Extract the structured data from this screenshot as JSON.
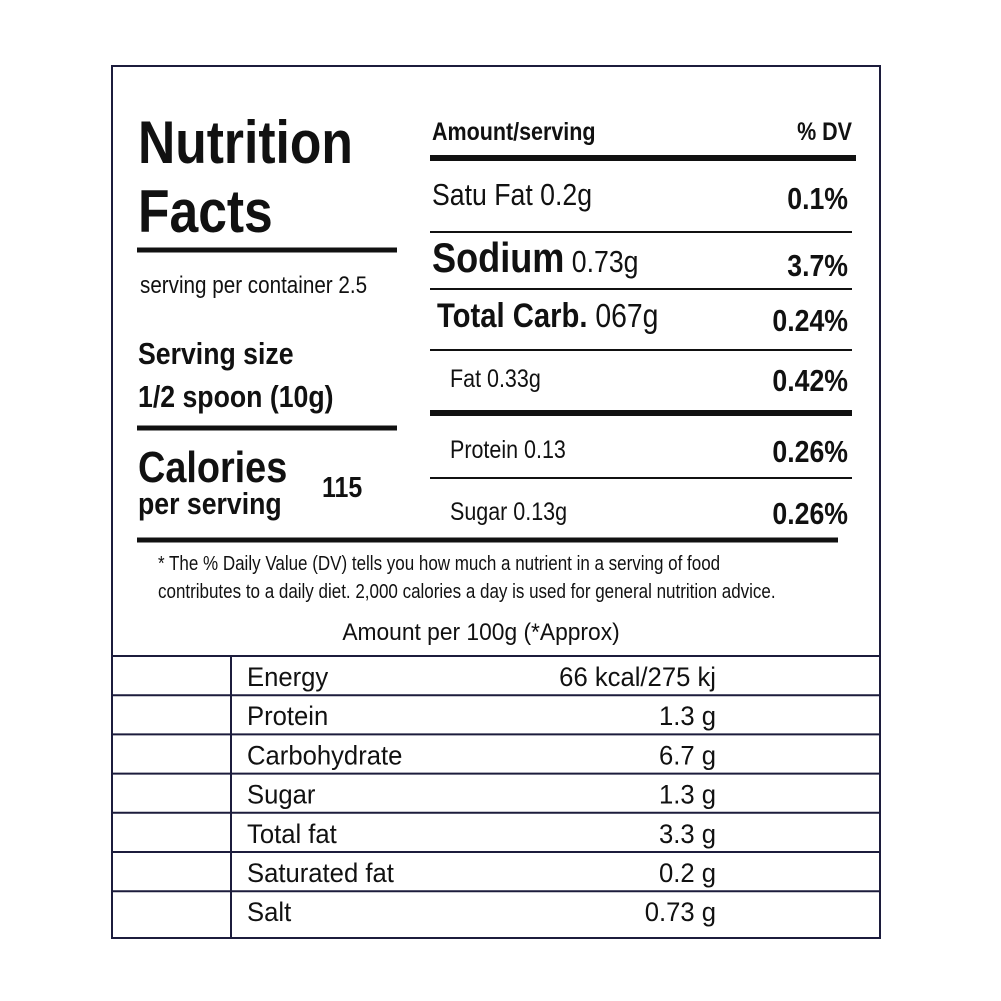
{
  "header": {
    "title_line1": "Nutrition",
    "title_line2": "Facts"
  },
  "servings_per_container": "serving per container 2.5",
  "serving_size": {
    "label": "Serving size",
    "value": "1/2 spoon (10g)"
  },
  "calories": {
    "label": "Calories",
    "sublabel": "per serving",
    "value": "115"
  },
  "dv_table": {
    "header": {
      "amount": "Amount/serving",
      "dv": "% DV"
    },
    "rows": [
      {
        "name": "Satu Fat",
        "amount": "0.2g",
        "dv": "0.1%"
      },
      {
        "name": "Sodium",
        "amount": "0.73g",
        "dv": "3.7%"
      },
      {
        "name": "Total Carb.",
        "amount": "067g",
        "dv": "0.24%"
      },
      {
        "name": "Fat",
        "amount": "0.33g",
        "dv": "0.42%"
      },
      {
        "name": "Protein",
        "amount": "0.13",
        "dv": "0.26%"
      },
      {
        "name": "Sugar",
        "amount": "0.13g",
        "dv": "0.26%"
      }
    ]
  },
  "footnote": [
    "* The % Daily Value (DV) tells you how much a nutrient in a serving of food",
    "contributes to a daily diet. 2,000 calories a day is used for general nutrition advice."
  ],
  "per100g": {
    "title": "Amount per 100g (*Approx)",
    "rows": [
      [
        "Energy",
        "66 kcal/275 kj"
      ],
      [
        "Protein",
        "1.3 g"
      ],
      [
        "Carbohydrate",
        "6.7 g"
      ],
      [
        "Sugar",
        "1.3 g"
      ],
      [
        "Total fat",
        "3.3 g"
      ],
      [
        "Saturated fat",
        "0.2 g"
      ],
      [
        "Salt",
        "0.73 g"
      ]
    ]
  }
}
